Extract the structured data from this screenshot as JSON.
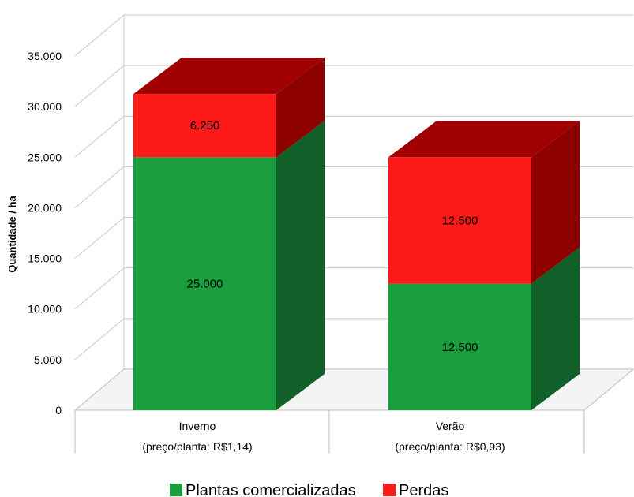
{
  "chart_data": {
    "type": "bar",
    "stacked": true,
    "three_d": true,
    "ylabel": "Quantidade / ha",
    "ylim": [
      0,
      35000
    ],
    "yticks": [
      0,
      5000,
      10000,
      15000,
      20000,
      25000,
      30000,
      35000
    ],
    "ytick_labels": [
      "0",
      "5.000",
      "10.000",
      "15.000",
      "20.000",
      "25.000",
      "30.000",
      "35.000"
    ],
    "grid": true,
    "legend_position": "bottom",
    "categories": [
      {
        "name": "Inverno",
        "sublabel": "(preço/planta: R$1,14)"
      },
      {
        "name": "Verão",
        "sublabel": "(preço/planta: R$0,93)"
      }
    ],
    "series": [
      {
        "name": "Plantas comercializadas",
        "values": [
          25000,
          12500
        ],
        "labels": [
          "25.000",
          "12.500"
        ],
        "color": "#1a9d3d",
        "side_color": "#11602a",
        "top_color": "#146e2f"
      },
      {
        "name": "Perdas",
        "values": [
          6250,
          12500
        ],
        "labels": [
          "6.250",
          "12.500"
        ],
        "color": "#ff1a1a",
        "side_color": "#8c0000",
        "top_color": "#a00000"
      }
    ]
  }
}
